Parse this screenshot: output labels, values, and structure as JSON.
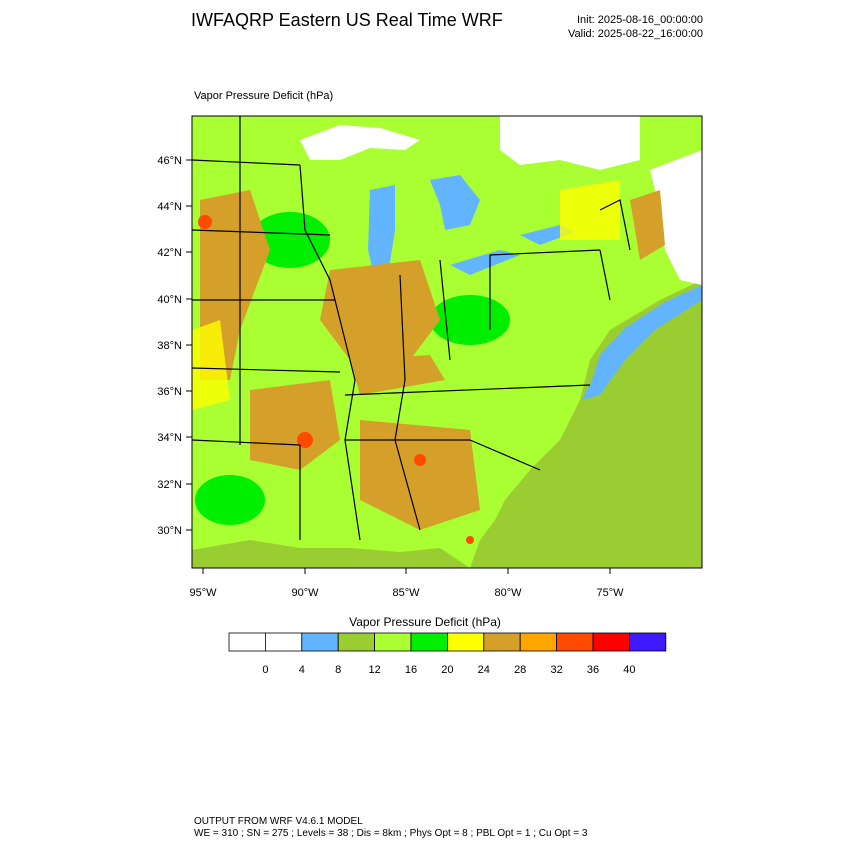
{
  "header": {
    "title": "IWFAQRP Eastern US Real Time WRF",
    "init": "Init: 2025-08-16_00:00:00",
    "valid": "Valid: 2025-08-22_16:00:00"
  },
  "map": {
    "field_label": "Vapor Pressure Deficit   (hPa)",
    "lat_labels": [
      "46°N",
      "44°N",
      "42°N",
      "40°N",
      "38°N",
      "36°N",
      "34°N",
      "32°N",
      "30°N"
    ],
    "lon_labels": [
      "95°W",
      "90°W",
      "85°W",
      "80°W",
      "75°W"
    ]
  },
  "colorbar": {
    "title": "Vapor Pressure Deficit  (hPa)",
    "ticks": [
      "0",
      "4",
      "8",
      "12",
      "16",
      "20",
      "24",
      "28",
      "32",
      "36",
      "40"
    ],
    "colors": [
      "#ffffff",
      "#ffffff",
      "#63b4ff",
      "#9acd32",
      "#aaff33",
      "#00ee00",
      "#ffff00",
      "#d4a02a",
      "#ffa500",
      "#ff4a00",
      "#ff0000",
      "#3f1aff"
    ]
  },
  "palette": {
    "water": "#63b4ff",
    "ocean_land_fill": "#9acd32",
    "snowice": "#ffffff",
    "dry_orange": "#d4a02a",
    "moist_green": "#00ee00"
  },
  "footer": {
    "line1": "OUTPUT FROM WRF V4.6.1 MODEL",
    "line2": "WE = 310 ; SN = 275 ; Levels = 38 ; Dis = 8km ; Phys Opt = 8 ; PBL Opt = 1 ; Cu Opt = 3"
  }
}
